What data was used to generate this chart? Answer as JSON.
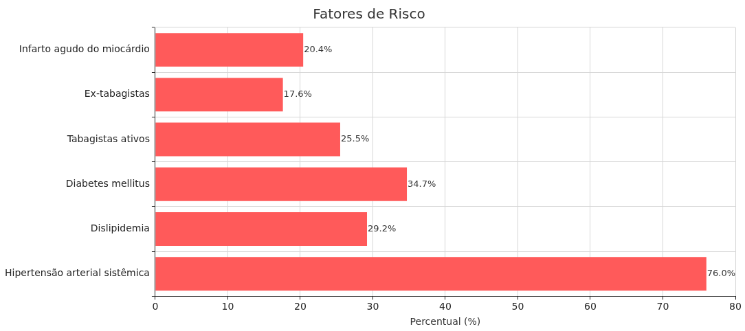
{
  "chart_data": {
    "type": "bar",
    "orientation": "horizontal",
    "title": "Fatores de Risco",
    "xlabel": "Percentual (%)",
    "categories": [
      "Infarto agudo do miocárdio",
      "Ex-tabagistas",
      "Tabagistas ativos",
      "Diabetes mellitus",
      "Dislipidemia",
      "Hipertensão arterial sistêmica"
    ],
    "values": [
      20.4,
      17.6,
      25.5,
      34.7,
      29.2,
      76.0
    ],
    "value_labels": [
      "20.4%",
      "17.6%",
      "25.5%",
      "34.7%",
      "29.2%",
      "76.0%"
    ],
    "color": "#ff5a5a",
    "xlim": [
      0,
      80
    ],
    "xticks": [
      0,
      10,
      20,
      30,
      40,
      50,
      60,
      70,
      80
    ],
    "grid": true
  }
}
